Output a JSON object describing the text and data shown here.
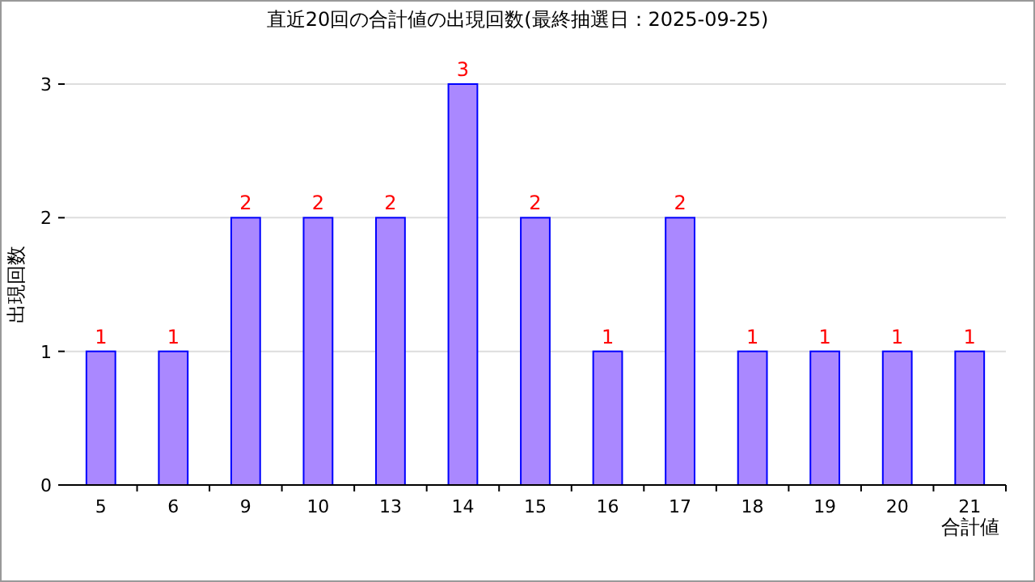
{
  "chart_data": {
    "type": "bar",
    "title": "直近20回の合計値の出現回数(最終抽選日：2025-09-25)",
    "xlabel": "合計値",
    "ylabel": "出現回数",
    "categories": [
      "5",
      "6",
      "9",
      "10",
      "13",
      "14",
      "15",
      "16",
      "17",
      "18",
      "19",
      "20",
      "21"
    ],
    "values": [
      1,
      1,
      2,
      2,
      2,
      3,
      2,
      1,
      2,
      1,
      1,
      1,
      1
    ],
    "color": "#aa88ff",
    "ylim": [
      0,
      3
    ],
    "yticks": [
      0,
      1,
      2,
      3
    ],
    "grid": "y",
    "data_labels": true
  }
}
